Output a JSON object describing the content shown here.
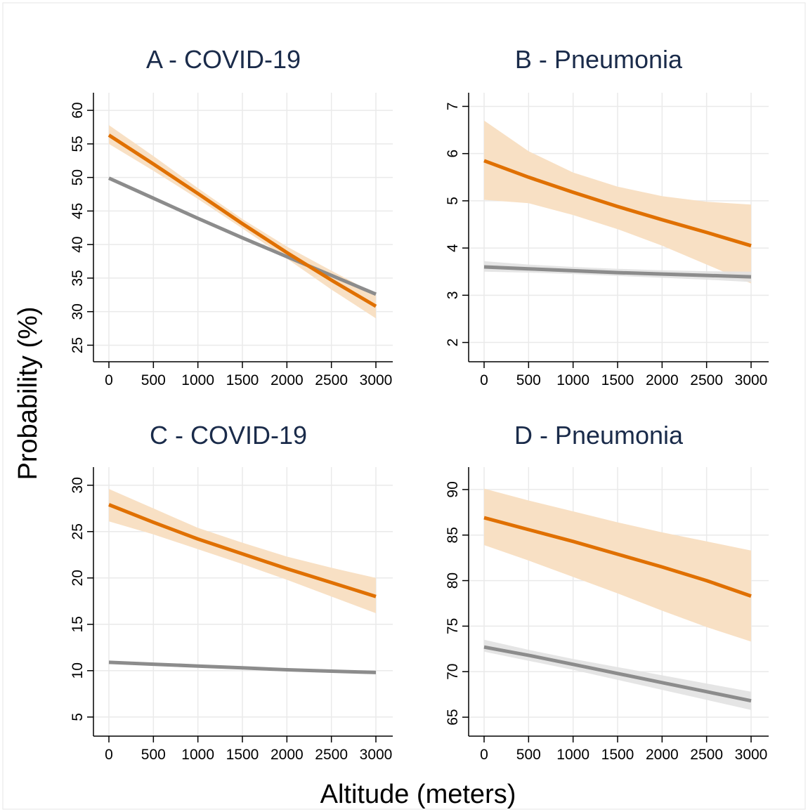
{
  "figure": {
    "y_axis_title": "Probability (%)",
    "x_axis_title": "Altitude (meters)"
  },
  "colors": {
    "orange_line": "#e07000",
    "orange_band": "#f8e0c4",
    "gray_line": "#8c8c8c",
    "gray_band": "#e2e2e2",
    "grid": "#eaeaea",
    "title": "#1a2b4a"
  },
  "chart_data": [
    {
      "type": "line",
      "title": "A - COVID-19",
      "xlim": [
        0,
        3000
      ],
      "ylim": [
        24,
        62
      ],
      "x_ticks": [
        0,
        500,
        1000,
        1500,
        2000,
        2500,
        3000
      ],
      "y_ticks": [
        25,
        30,
        35,
        40,
        45,
        50,
        55,
        60
      ],
      "grid": true,
      "series": [
        {
          "color": "orange",
          "x": [
            0,
            500,
            1000,
            1500,
            2000,
            2500,
            3000
          ],
          "y": [
            56.3,
            52.0,
            47.6,
            43.1,
            38.8,
            34.7,
            30.8
          ],
          "lower": [
            55.0,
            51.0,
            46.8,
            42.4,
            37.9,
            33.3,
            29.0
          ],
          "upper": [
            57.8,
            53.2,
            48.4,
            43.8,
            39.7,
            36.1,
            32.6
          ]
        },
        {
          "color": "gray",
          "x": [
            0,
            500,
            1000,
            1500,
            2000,
            2500,
            3000
          ],
          "y": [
            49.9,
            46.9,
            43.9,
            41.0,
            38.2,
            35.4,
            32.6
          ],
          "lower": [
            49.7,
            46.7,
            43.7,
            40.8,
            38.0,
            35.2,
            32.4
          ],
          "upper": [
            50.1,
            47.1,
            44.1,
            41.2,
            38.4,
            35.6,
            32.8
          ]
        }
      ]
    },
    {
      "type": "line",
      "title": "B - Pneumonia",
      "xlim": [
        0,
        3000
      ],
      "ylim": [
        1.8,
        7.2
      ],
      "x_ticks": [
        0,
        500,
        1000,
        1500,
        2000,
        2500,
        3000
      ],
      "y_ticks": [
        2,
        3,
        4,
        5,
        6,
        7
      ],
      "grid": true,
      "series": [
        {
          "color": "orange",
          "x": [
            0,
            500,
            1000,
            1500,
            2000,
            2500,
            3000
          ],
          "y": [
            5.85,
            5.5,
            5.18,
            4.88,
            4.6,
            4.33,
            4.05
          ],
          "lower": [
            5.02,
            4.95,
            4.7,
            4.4,
            4.05,
            3.65,
            3.25
          ],
          "upper": [
            6.7,
            6.05,
            5.6,
            5.3,
            5.1,
            4.98,
            4.92
          ]
        },
        {
          "color": "gray",
          "x": [
            0,
            500,
            1000,
            1500,
            2000,
            2500,
            3000
          ],
          "y": [
            3.6,
            3.56,
            3.52,
            3.48,
            3.45,
            3.42,
            3.39
          ],
          "lower": [
            3.5,
            3.48,
            3.45,
            3.41,
            3.37,
            3.33,
            3.28
          ],
          "upper": [
            3.72,
            3.65,
            3.6,
            3.56,
            3.53,
            3.51,
            3.5
          ]
        }
      ]
    },
    {
      "type": "line",
      "title": "C - COVID-19",
      "xlim": [
        0,
        3000
      ],
      "ylim": [
        4,
        31.5
      ],
      "x_ticks": [
        0,
        500,
        1000,
        1500,
        2000,
        2500,
        3000
      ],
      "y_ticks": [
        5,
        10,
        15,
        20,
        25,
        30
      ],
      "grid": true,
      "series": [
        {
          "color": "orange",
          "x": [
            0,
            500,
            1000,
            1500,
            2000,
            2500,
            3000
          ],
          "y": [
            27.9,
            26.0,
            24.2,
            22.6,
            21.0,
            19.5,
            18.0
          ],
          "lower": [
            26.1,
            24.7,
            23.1,
            21.5,
            19.8,
            18.0,
            16.2
          ],
          "upper": [
            29.6,
            27.5,
            25.4,
            23.8,
            22.3,
            21.1,
            20.0
          ]
        },
        {
          "color": "gray",
          "x": [
            0,
            500,
            1000,
            1500,
            2000,
            2500,
            3000
          ],
          "y": [
            10.9,
            10.7,
            10.5,
            10.3,
            10.1,
            9.95,
            9.8
          ],
          "lower": [
            10.8,
            10.6,
            10.4,
            10.2,
            10.0,
            9.85,
            9.7
          ],
          "upper": [
            11.0,
            10.8,
            10.6,
            10.4,
            10.2,
            10.05,
            9.9
          ]
        }
      ]
    },
    {
      "type": "line",
      "title": "D - Pneumonia",
      "xlim": [
        0,
        3000
      ],
      "ylim": [
        64,
        92
      ],
      "x_ticks": [
        0,
        500,
        1000,
        1500,
        2000,
        2500,
        3000
      ],
      "y_ticks": [
        65,
        70,
        75,
        80,
        85,
        90
      ],
      "grid": true,
      "series": [
        {
          "color": "orange",
          "x": [
            0,
            500,
            1000,
            1500,
            2000,
            2500,
            3000
          ],
          "y": [
            86.9,
            85.6,
            84.3,
            82.9,
            81.5,
            80.0,
            78.3
          ],
          "lower": [
            83.9,
            82.2,
            80.4,
            78.6,
            76.7,
            74.9,
            73.3
          ],
          "upper": [
            90.1,
            88.8,
            87.6,
            86.4,
            85.3,
            84.3,
            83.3
          ]
        },
        {
          "color": "gray",
          "x": [
            0,
            500,
            1000,
            1500,
            2000,
            2500,
            3000
          ],
          "y": [
            72.7,
            71.8,
            70.8,
            69.8,
            68.8,
            67.8,
            66.8
          ],
          "lower": [
            72.2,
            71.2,
            70.2,
            69.1,
            68.0,
            66.9,
            65.8
          ],
          "upper": [
            73.5,
            72.4,
            71.4,
            70.5,
            69.6,
            68.7,
            67.8
          ]
        }
      ]
    }
  ]
}
